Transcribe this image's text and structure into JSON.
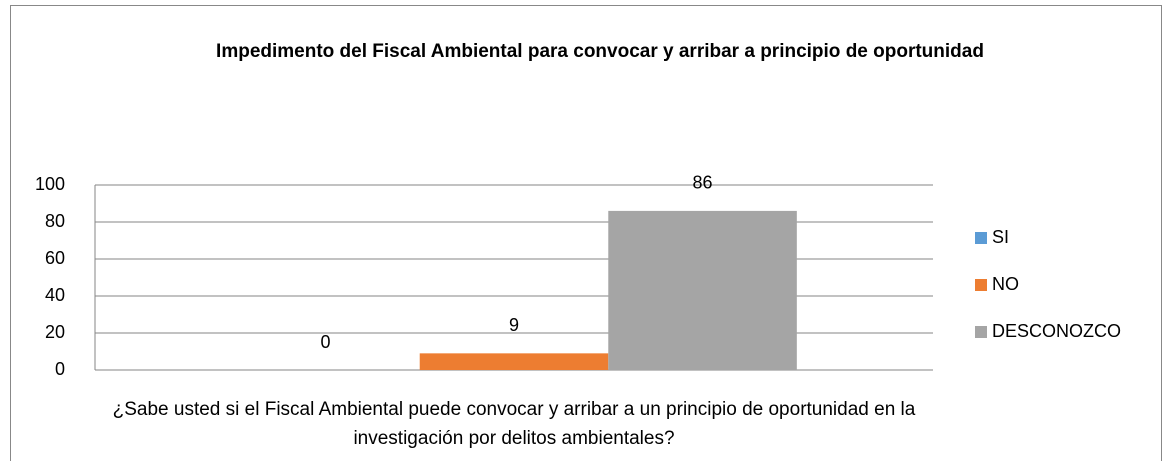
{
  "chart_data": {
    "type": "bar",
    "title": "Impedimento del Fiscal Ambiental para convocar y arribar a principio de oportunidad",
    "categories": [
      "¿Sabe usted si el Fiscal Ambiental puede convocar y arribar a un principio de oportunidad en la investigación por delitos ambientales?"
    ],
    "series": [
      {
        "name": "SI",
        "color": "#5b9bd5",
        "values": [
          0
        ]
      },
      {
        "name": "NO",
        "color": "#ed7d31",
        "values": [
          9
        ]
      },
      {
        "name": "DESCONOZCO",
        "color": "#a5a5a5",
        "values": [
          86
        ]
      }
    ],
    "ylim": [
      0,
      100
    ],
    "yticks": [
      0,
      20,
      40,
      60,
      80,
      100
    ],
    "grid": true,
    "legend": "right"
  }
}
